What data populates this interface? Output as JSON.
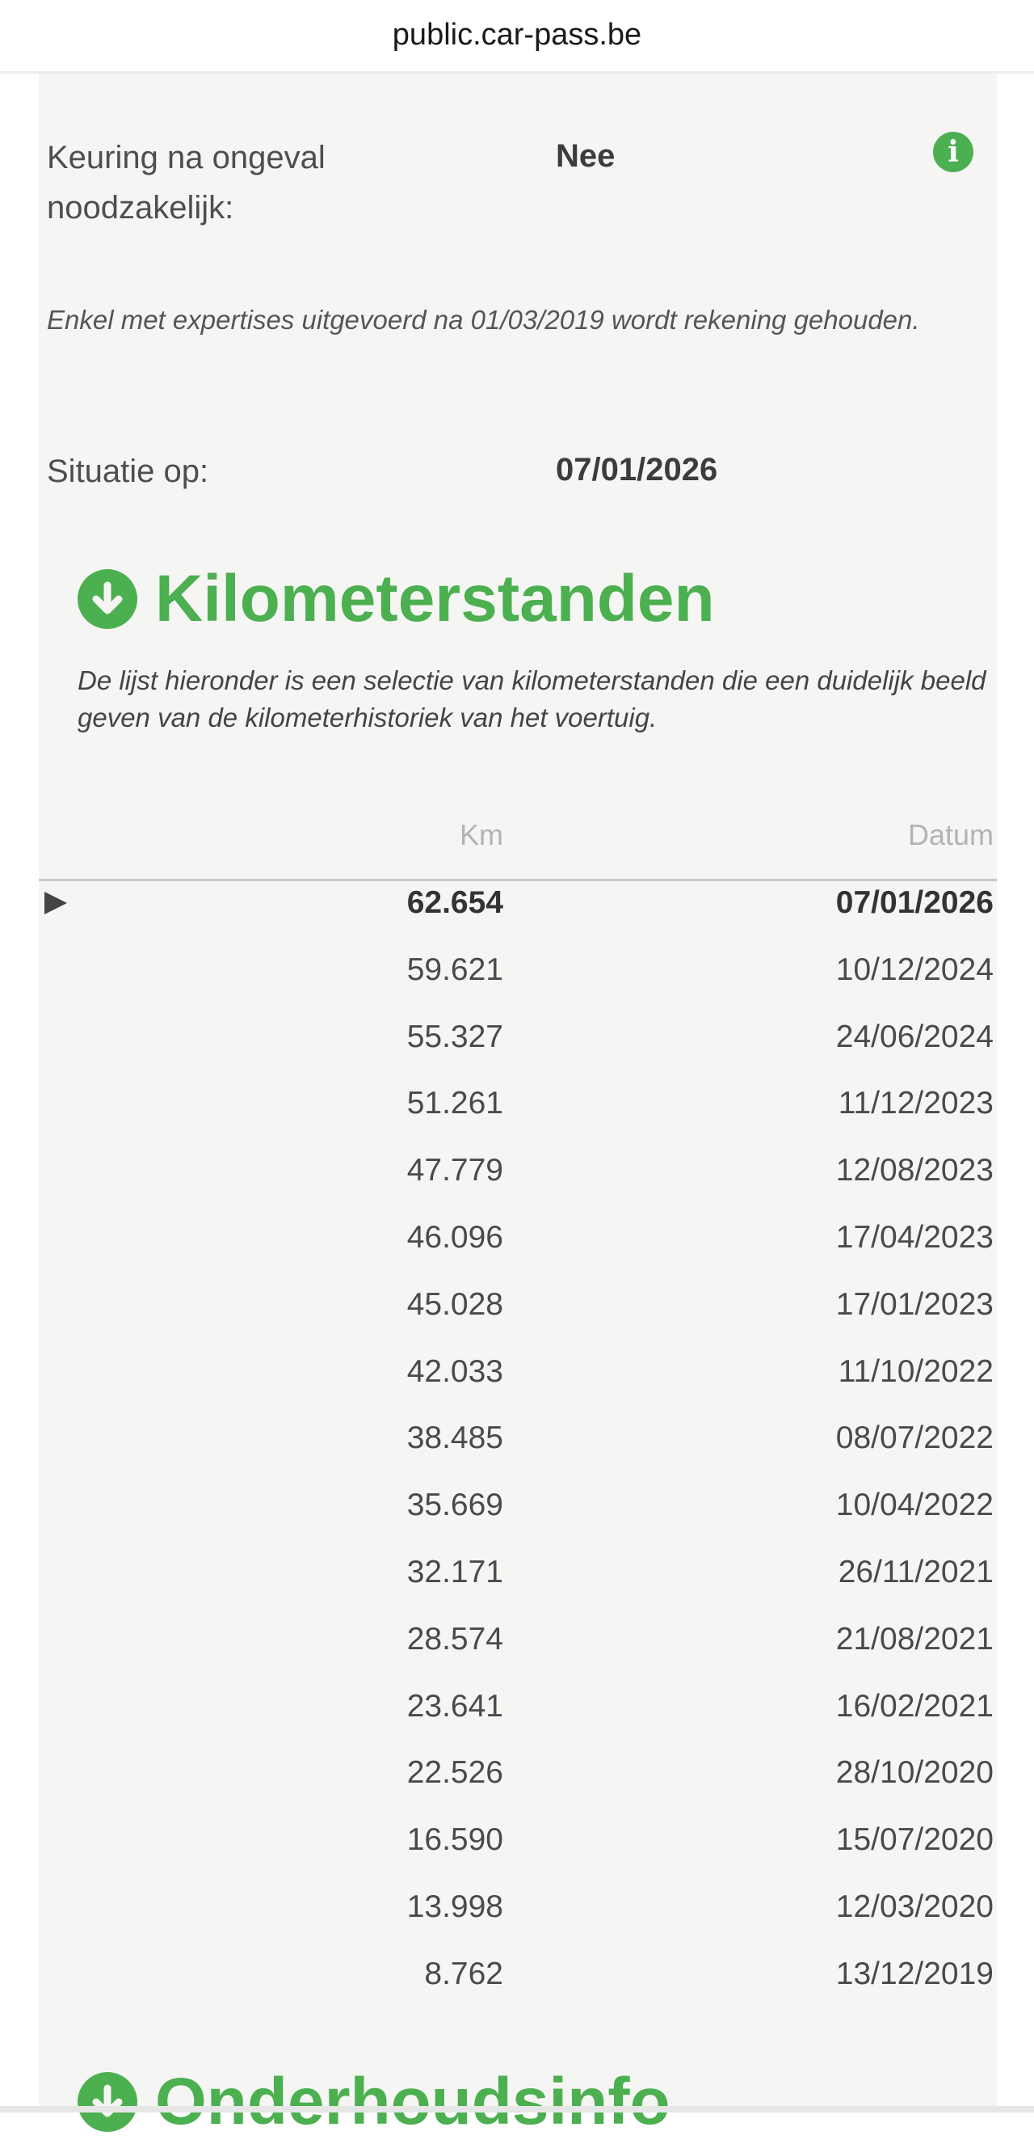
{
  "browser": {
    "url": "public.car-pass.be"
  },
  "accident_check": {
    "label": "Keuring na ongeval noodzakelijk:",
    "value": "Nee",
    "info_icon": "info-icon"
  },
  "note": "Enkel met expertises uitgevoerd na 01/03/2019 wordt rekening gehouden.",
  "situation": {
    "label": "Situatie op:",
    "value": "07/01/2026"
  },
  "mileage": {
    "title": "Kilometerstanden",
    "icon": "arrow-down-circle-icon",
    "description": "De lijst hieronder is een selectie van kilometerstanden die een duidelijk beeld geven van de kilometerhistoriek van het voertuig.",
    "columns": {
      "km": "Km",
      "date": "Datum"
    },
    "rows": [
      {
        "km": "62.654",
        "date": "07/01/2026",
        "current": true
      },
      {
        "km": "59.621",
        "date": "10/12/2024"
      },
      {
        "km": "55.327",
        "date": "24/06/2024"
      },
      {
        "km": "51.261",
        "date": "11/12/2023"
      },
      {
        "km": "47.779",
        "date": "12/08/2023"
      },
      {
        "km": "46.096",
        "date": "17/04/2023"
      },
      {
        "km": "45.028",
        "date": "17/01/2023"
      },
      {
        "km": "42.033",
        "date": "11/10/2022"
      },
      {
        "km": "38.485",
        "date": "08/07/2022"
      },
      {
        "km": "35.669",
        "date": "10/04/2022"
      },
      {
        "km": "32.171",
        "date": "26/11/2021"
      },
      {
        "km": "28.574",
        "date": "21/08/2021"
      },
      {
        "km": "23.641",
        "date": "16/02/2021"
      },
      {
        "km": "22.526",
        "date": "28/10/2020"
      },
      {
        "km": "16.590",
        "date": "15/07/2020"
      },
      {
        "km": "13.998",
        "date": "12/03/2020"
      },
      {
        "km": "8.762",
        "date": "13/12/2019"
      }
    ]
  },
  "next_section": {
    "title": "Onderhoudsinfo"
  },
  "colors": {
    "accent": "#4caf50",
    "panel": "#f5f6f3"
  }
}
